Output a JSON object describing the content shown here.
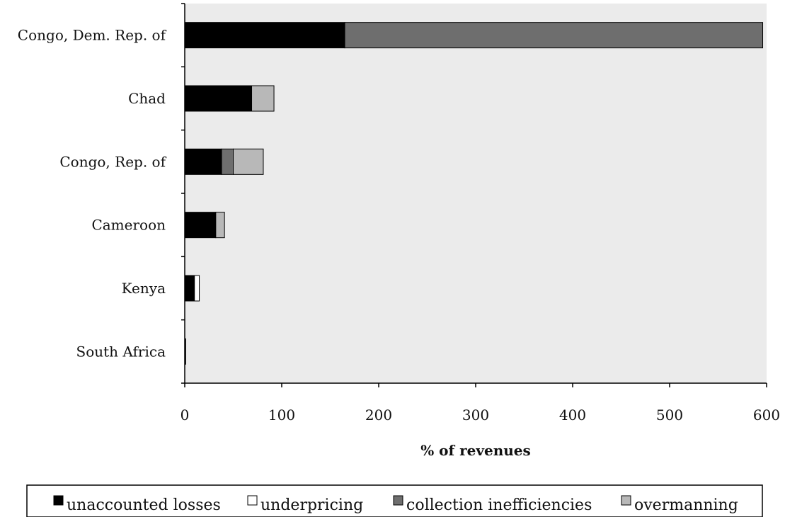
{
  "chart_data": {
    "type": "bar",
    "orientation": "horizontal",
    "stacked": true,
    "title": "",
    "xlabel": "% of revenues",
    "ylabel": "",
    "xlim": [
      0,
      600
    ],
    "xticks": [
      0,
      100,
      200,
      300,
      400,
      500,
      600
    ],
    "categories": [
      "Congo, Dem. Rep. of",
      "Chad",
      "Congo, Rep. of",
      "Cameroon",
      "Kenya",
      "South Africa"
    ],
    "series": [
      {
        "name": "unaccounted losses",
        "color": "#000000",
        "values": [
          165,
          69,
          38,
          32,
          10,
          1
        ]
      },
      {
        "name": "underpricing",
        "color": "#ffffff",
        "values": [
          0,
          0,
          0,
          0,
          5,
          0
        ]
      },
      {
        "name": "collection inefficiencies",
        "color": "#6e6e6e",
        "values": [
          431,
          0,
          12,
          0,
          0,
          0
        ]
      },
      {
        "name": "overmanning",
        "color": "#b8b8b8",
        "values": [
          0,
          23,
          31,
          9,
          0,
          0
        ]
      }
    ],
    "grid": false,
    "legend_position": "bottom",
    "plot_background": "#ebebeb"
  }
}
